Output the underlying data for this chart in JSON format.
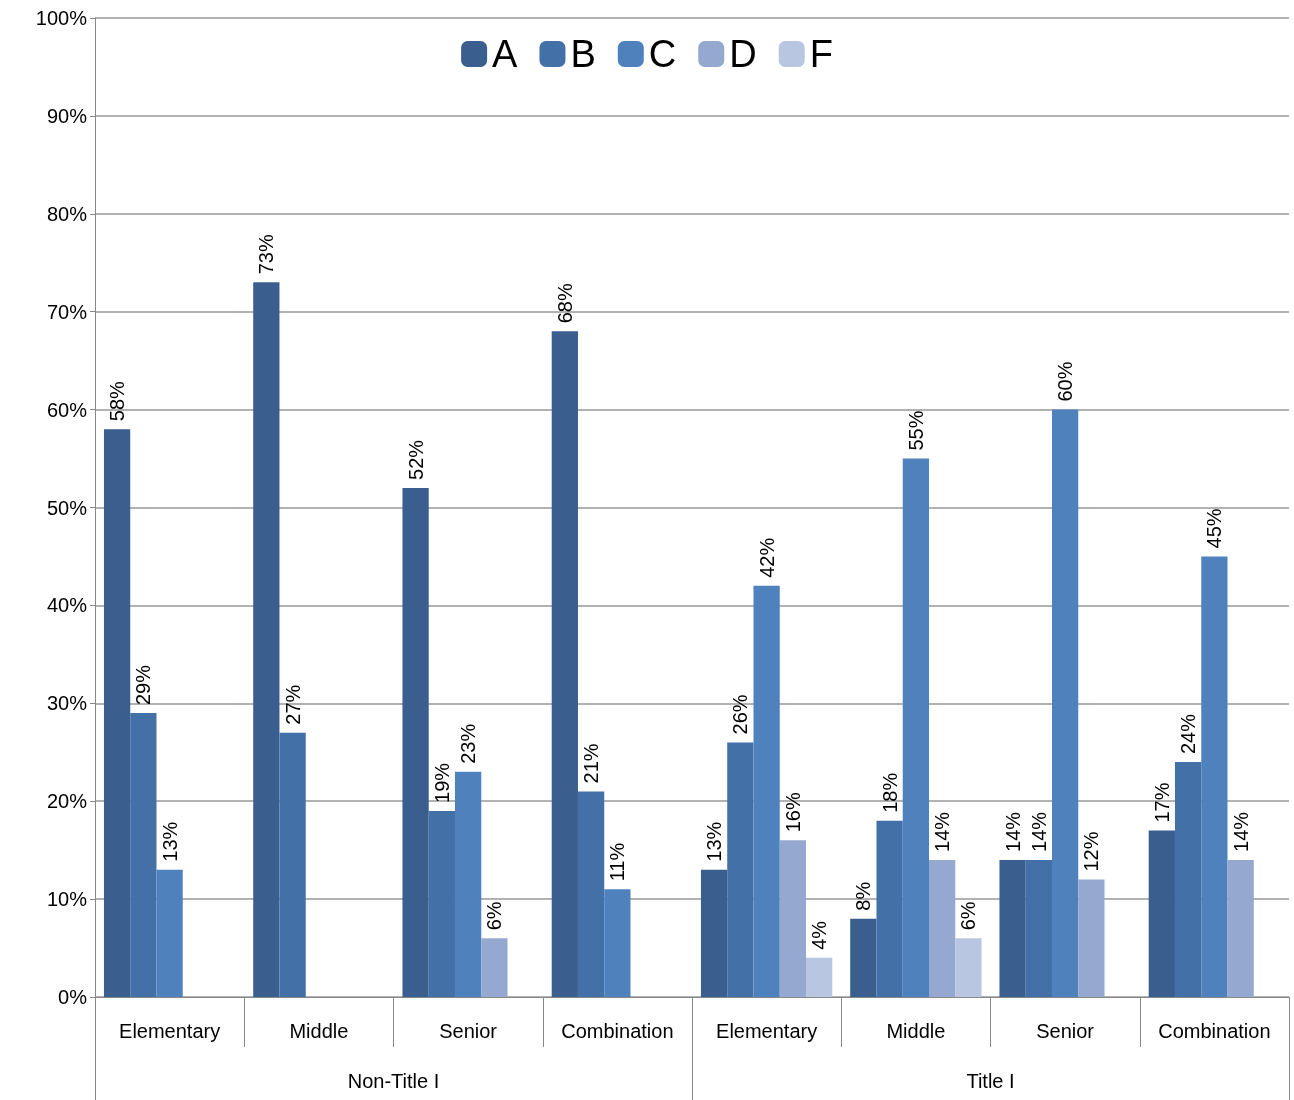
{
  "chart_data": {
    "type": "bar",
    "categories": [
      "Elementary",
      "Middle",
      "Senior",
      "Combination",
      "Elementary",
      "Middle",
      "Senior",
      "Combination"
    ],
    "series": [
      {
        "name": "A",
        "color": "#3a5f8f",
        "values": [
          58,
          73,
          52,
          68,
          13,
          8,
          14,
          17
        ],
        "value_labels": [
          "58%",
          "73%",
          "52%",
          "68%",
          "13%",
          "8%",
          "14%",
          "17%"
        ]
      },
      {
        "name": "B",
        "color": "#4470a8",
        "values": [
          29,
          27,
          19,
          21,
          26,
          18,
          14,
          24
        ],
        "value_labels": [
          "29%",
          "27%",
          "19%",
          "21%",
          "26%",
          "18%",
          "14%",
          "24%"
        ]
      },
      {
        "name": "C",
        "color": "#4f81bd",
        "values": [
          13,
          null,
          23,
          11,
          42,
          55,
          60,
          45
        ],
        "value_labels": [
          "13%",
          null,
          "23%",
          "11%",
          "42%",
          "55%",
          "60%",
          "45%"
        ]
      },
      {
        "name": "D",
        "color": "#95a8d0",
        "values": [
          null,
          null,
          6,
          null,
          16,
          14,
          12,
          14
        ],
        "value_labels": [
          null,
          null,
          "6%",
          null,
          "16%",
          "14%",
          "12%",
          "14%"
        ]
      },
      {
        "name": "F",
        "color": "#b9c6e2",
        "values": [
          null,
          null,
          null,
          null,
          4,
          6,
          null,
          null
        ],
        "value_labels": [
          null,
          null,
          null,
          null,
          "4%",
          "6%",
          null,
          null
        ]
      }
    ],
    "annotations": [
      "Non-Title I",
      "Title I"
    ],
    "ylim": [
      0,
      100
    ],
    "yticks": [
      {
        "value": 0,
        "label": "0%"
      },
      {
        "value": 10,
        "label": "10%"
      },
      {
        "value": 20,
        "label": "20%"
      },
      {
        "value": 30,
        "label": "30%"
      },
      {
        "value": 40,
        "label": "40%"
      },
      {
        "value": 50,
        "label": "50%"
      },
      {
        "value": 60,
        "label": "60%"
      },
      {
        "value": 70,
        "label": "70%"
      },
      {
        "value": 80,
        "label": "80%"
      },
      {
        "value": 90,
        "label": "90%"
      },
      {
        "value": 100,
        "label": "100%"
      }
    ],
    "grid": "y",
    "legend": "top"
  }
}
